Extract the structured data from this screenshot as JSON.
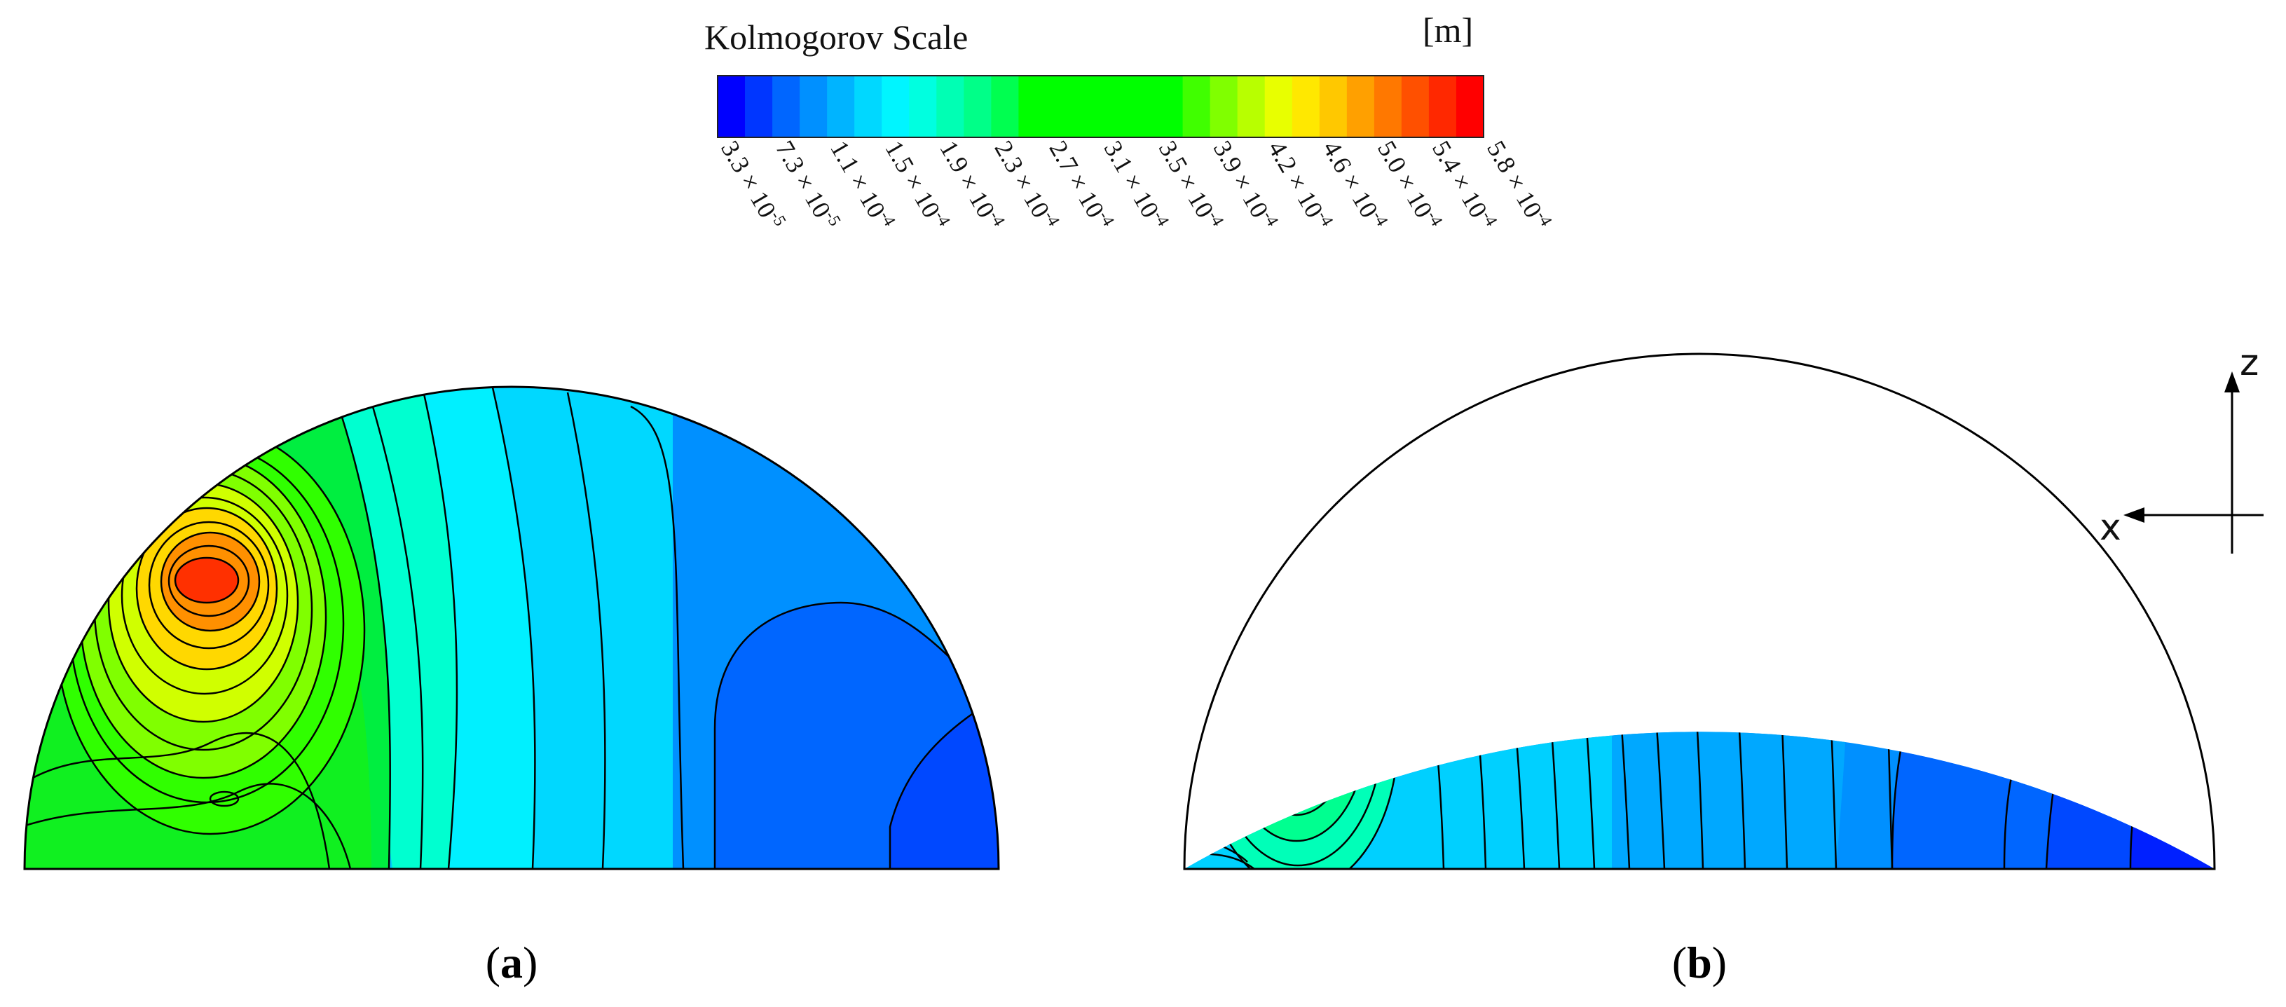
{
  "colorbar": {
    "title": "Kolmogorov Scale",
    "unit": "[m]",
    "colors": [
      "#0000ff",
      "#0036ff",
      "#0066ff",
      "#0090ff",
      "#00b4ff",
      "#00d8ff",
      "#00f5ff",
      "#00ffe0",
      "#00ffb4",
      "#00ff88",
      "#00ff50",
      "#00ff00",
      "#00ff00",
      "#00ff00",
      "#00ff00",
      "#00ff00",
      "#00ff00",
      "#40ff00",
      "#80ff00",
      "#b8ff00",
      "#e8ff00",
      "#ffe800",
      "#ffc800",
      "#ffa000",
      "#ff7800",
      "#ff5000",
      "#ff2800",
      "#ff0000"
    ],
    "ticks": [
      {
        "mant": "3.3",
        "exp": "-5"
      },
      {
        "mant": "7.3",
        "exp": "-5"
      },
      {
        "mant": "1.1",
        "exp": "-4"
      },
      {
        "mant": "1.5",
        "exp": "-4"
      },
      {
        "mant": "1.9",
        "exp": "-4"
      },
      {
        "mant": "2.3",
        "exp": "-4"
      },
      {
        "mant": "2.7",
        "exp": "-4"
      },
      {
        "mant": "3.1",
        "exp": "-4"
      },
      {
        "mant": "3.5",
        "exp": "-4"
      },
      {
        "mant": "3.9",
        "exp": "-4"
      },
      {
        "mant": "4.2",
        "exp": "-4"
      },
      {
        "mant": "4.6",
        "exp": "-4"
      },
      {
        "mant": "5.0",
        "exp": "-4"
      },
      {
        "mant": "5.4",
        "exp": "-4"
      },
      {
        "mant": "5.8",
        "exp": "-4"
      }
    ]
  },
  "panels": [
    {
      "label": "(a)",
      "letter": "a"
    },
    {
      "label": "(b)",
      "letter": "b"
    }
  ],
  "axes": {
    "z": "z",
    "x": "x"
  }
}
